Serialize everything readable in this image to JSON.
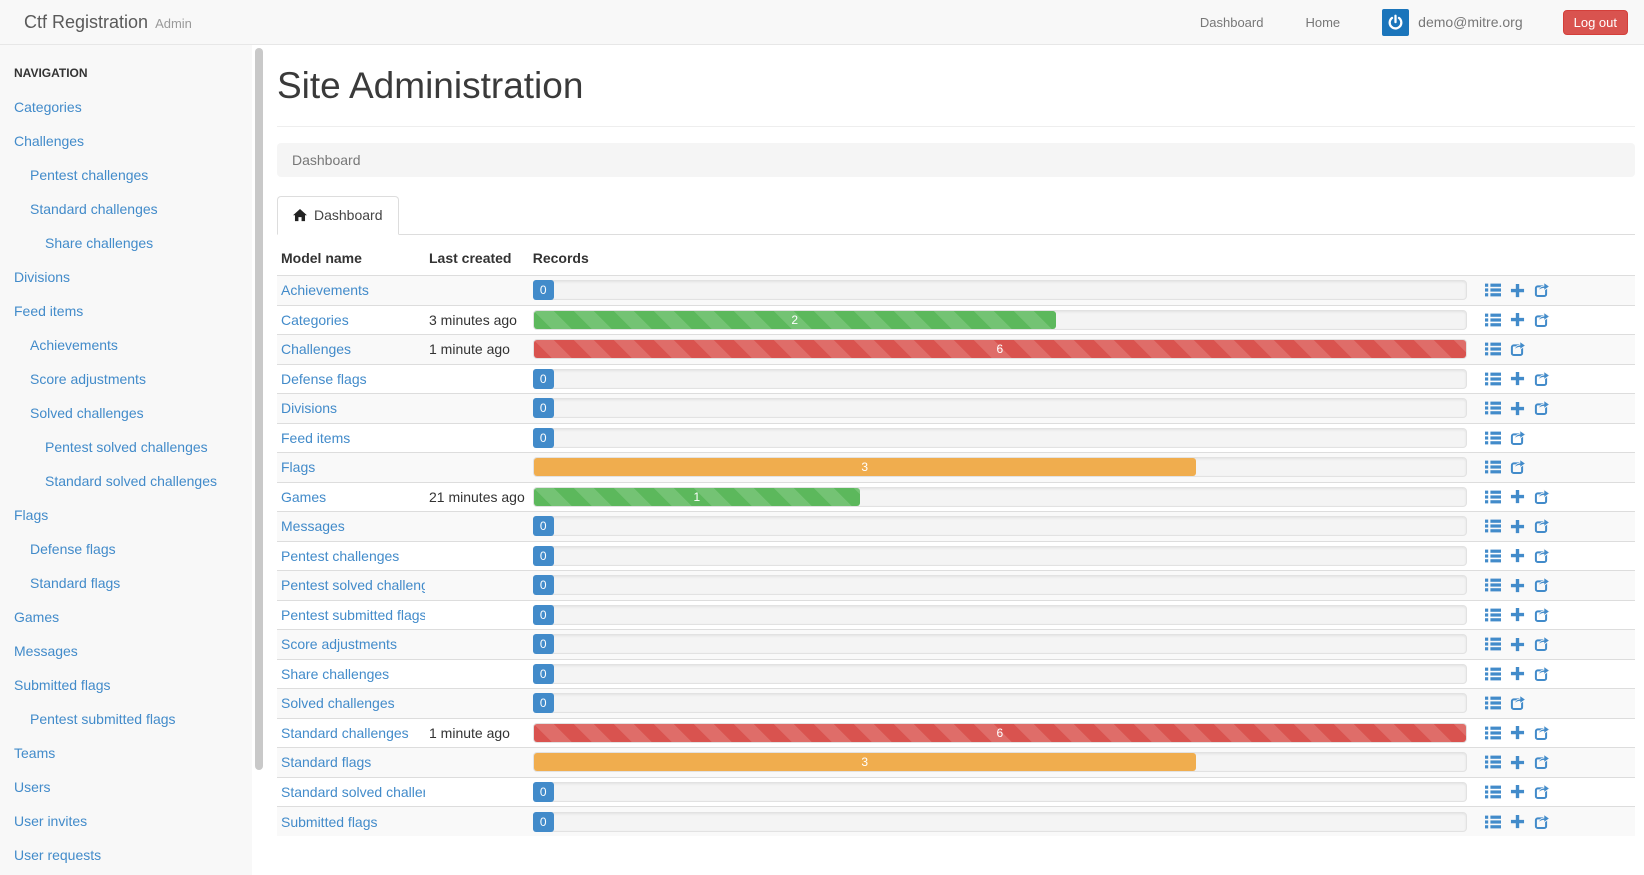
{
  "navbar": {
    "brand": "Ctf Registration",
    "brand_suffix": "Admin",
    "links": [
      {
        "label": "Dashboard"
      },
      {
        "label": "Home"
      }
    ],
    "avatar_icon": "power-icon",
    "user_email": "demo@mitre.org",
    "logout_label": "Log out"
  },
  "sidebar": {
    "header": "NAVIGATION",
    "items": [
      {
        "label": "Categories",
        "indent": 0
      },
      {
        "label": "Challenges",
        "indent": 0
      },
      {
        "label": "Pentest challenges",
        "indent": 1
      },
      {
        "label": "Standard challenges",
        "indent": 1
      },
      {
        "label": "Share challenges",
        "indent": 2
      },
      {
        "label": "Divisions",
        "indent": 0
      },
      {
        "label": "Feed items",
        "indent": 0
      },
      {
        "label": "Achievements",
        "indent": 1
      },
      {
        "label": "Score adjustments",
        "indent": 1
      },
      {
        "label": "Solved challenges",
        "indent": 1
      },
      {
        "label": "Pentest solved challenges",
        "indent": 2
      },
      {
        "label": "Standard solved challenges",
        "indent": 2
      },
      {
        "label": "Flags",
        "indent": 0
      },
      {
        "label": "Defense flags",
        "indent": 1
      },
      {
        "label": "Standard flags",
        "indent": 1
      },
      {
        "label": "Games",
        "indent": 0
      },
      {
        "label": "Messages",
        "indent": 0
      },
      {
        "label": "Submitted flags",
        "indent": 0
      },
      {
        "label": "Pentest submitted flags",
        "indent": 1
      },
      {
        "label": "Teams",
        "indent": 0
      },
      {
        "label": "Users",
        "indent": 0
      },
      {
        "label": "User invites",
        "indent": 0
      },
      {
        "label": "User requests",
        "indent": 0
      }
    ]
  },
  "main": {
    "title": "Site Administration",
    "breadcrumb": "Dashboard",
    "tab_label": "Dashboard",
    "tab_icon": "home-icon"
  },
  "table": {
    "columns": [
      "Model name",
      "Last created",
      "Records"
    ],
    "action_icons": [
      "list-icon",
      "plus-icon",
      "share-icon"
    ],
    "rows": [
      {
        "model": "Achievements",
        "created": "",
        "records": 0,
        "bar": null,
        "actions": [
          "changelist",
          "add",
          "export"
        ]
      },
      {
        "model": "Categories",
        "created": "3 minutes ago",
        "records": 2,
        "bar": {
          "style": "success",
          "striped": true,
          "width_pct": 56
        },
        "actions": [
          "changelist",
          "add",
          "export"
        ]
      },
      {
        "model": "Challenges",
        "created": "1 minute ago",
        "records": 6,
        "bar": {
          "style": "danger",
          "striped": true,
          "width_pct": 100
        },
        "actions": [
          "changelist",
          "export"
        ]
      },
      {
        "model": "Defense flags",
        "created": "",
        "records": 0,
        "bar": null,
        "actions": [
          "changelist",
          "add",
          "export"
        ]
      },
      {
        "model": "Divisions",
        "created": "",
        "records": 0,
        "bar": null,
        "actions": [
          "changelist",
          "add",
          "export"
        ]
      },
      {
        "model": "Feed items",
        "created": "",
        "records": 0,
        "bar": null,
        "actions": [
          "changelist",
          "export"
        ]
      },
      {
        "model": "Flags",
        "created": "",
        "records": 3,
        "bar": {
          "style": "warning",
          "striped": false,
          "width_pct": 71
        },
        "actions": [
          "changelist",
          "export"
        ]
      },
      {
        "model": "Games",
        "created": "21 minutes ago",
        "records": 1,
        "bar": {
          "style": "success",
          "striped": true,
          "width_pct": 35
        },
        "actions": [
          "changelist",
          "add",
          "export"
        ]
      },
      {
        "model": "Messages",
        "created": "",
        "records": 0,
        "bar": null,
        "actions": [
          "changelist",
          "add",
          "export"
        ]
      },
      {
        "model": "Pentest challenges",
        "created": "",
        "records": 0,
        "bar": null,
        "actions": [
          "changelist",
          "add",
          "export"
        ]
      },
      {
        "model": "Pentest solved challenges",
        "created": "",
        "records": 0,
        "bar": null,
        "actions": [
          "changelist",
          "add",
          "export"
        ]
      },
      {
        "model": "Pentest submitted flags",
        "created": "",
        "records": 0,
        "bar": null,
        "actions": [
          "changelist",
          "add",
          "export"
        ]
      },
      {
        "model": "Score adjustments",
        "created": "",
        "records": 0,
        "bar": null,
        "actions": [
          "changelist",
          "add",
          "export"
        ]
      },
      {
        "model": "Share challenges",
        "created": "",
        "records": 0,
        "bar": null,
        "actions": [
          "changelist",
          "add",
          "export"
        ]
      },
      {
        "model": "Solved challenges",
        "created": "",
        "records": 0,
        "bar": null,
        "actions": [
          "changelist",
          "export"
        ]
      },
      {
        "model": "Standard challenges",
        "created": "1 minute ago",
        "records": 6,
        "bar": {
          "style": "danger",
          "striped": true,
          "width_pct": 100
        },
        "actions": [
          "changelist",
          "add",
          "export"
        ]
      },
      {
        "model": "Standard flags",
        "created": "",
        "records": 3,
        "bar": {
          "style": "warning",
          "striped": false,
          "width_pct": 71
        },
        "actions": [
          "changelist",
          "add",
          "export"
        ]
      },
      {
        "model": "Standard solved challenges",
        "created": "",
        "records": 0,
        "bar": null,
        "actions": [
          "changelist",
          "add",
          "export"
        ]
      },
      {
        "model": "Submitted flags",
        "created": "",
        "records": 0,
        "bar": null,
        "actions": [
          "changelist",
          "add",
          "export"
        ]
      }
    ]
  },
  "colors": {
    "link": "#428bca",
    "badge": "#428bca",
    "bar_success": "#5cb85c",
    "bar_danger": "#d9534f",
    "bar_warning": "#f0ad4e",
    "logout_button": "#d9534f",
    "avatar_background": "#1b75bb",
    "sidebar_background": "#f8f8f8",
    "row_stripe": "#f9f9f9"
  }
}
